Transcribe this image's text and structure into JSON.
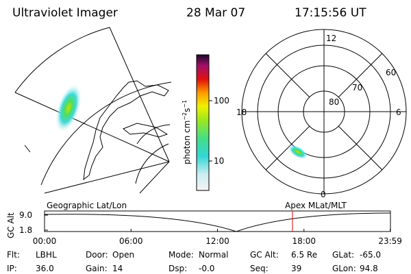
{
  "header": {
    "title": "Ultraviolet Imager",
    "date": "28 Mar 07",
    "time": "17:15:56 UT"
  },
  "colorbar": {
    "label": [
      "photon cm",
      "−2",
      "s",
      "−1"
    ],
    "ticks": [
      "100",
      "10"
    ]
  },
  "polar": {
    "hours": [
      "12",
      "18",
      "6",
      "0"
    ],
    "latitudes": [
      "60",
      "70",
      "80"
    ]
  },
  "plot": {
    "left_title": "Geographic Lat/Lon",
    "right_title": "Apex MLat/MLT",
    "ylabel": "GC Alt",
    "yticks": [
      "9.0",
      "1.8"
    ],
    "xticks": [
      "00:00",
      "06:00",
      "12:00",
      "18:00",
      "23:59"
    ]
  },
  "info": [
    [
      [
        "Flt:",
        "LBHL"
      ],
      [
        "Door:",
        "Open"
      ],
      [
        "Mode:",
        "Normal"
      ],
      [
        "GC Alt:",
        "6.5 Re"
      ],
      [
        "GLat:",
        "-65.0"
      ]
    ],
    [
      [
        "IP:",
        "36.0"
      ],
      [
        "Gain:",
        "14"
      ],
      [
        "Dsp:",
        "-0.0"
      ],
      [
        "Seq:",
        "39"
      ],
      [
        "GLon:",
        "94.8"
      ]
    ]
  ]
}
